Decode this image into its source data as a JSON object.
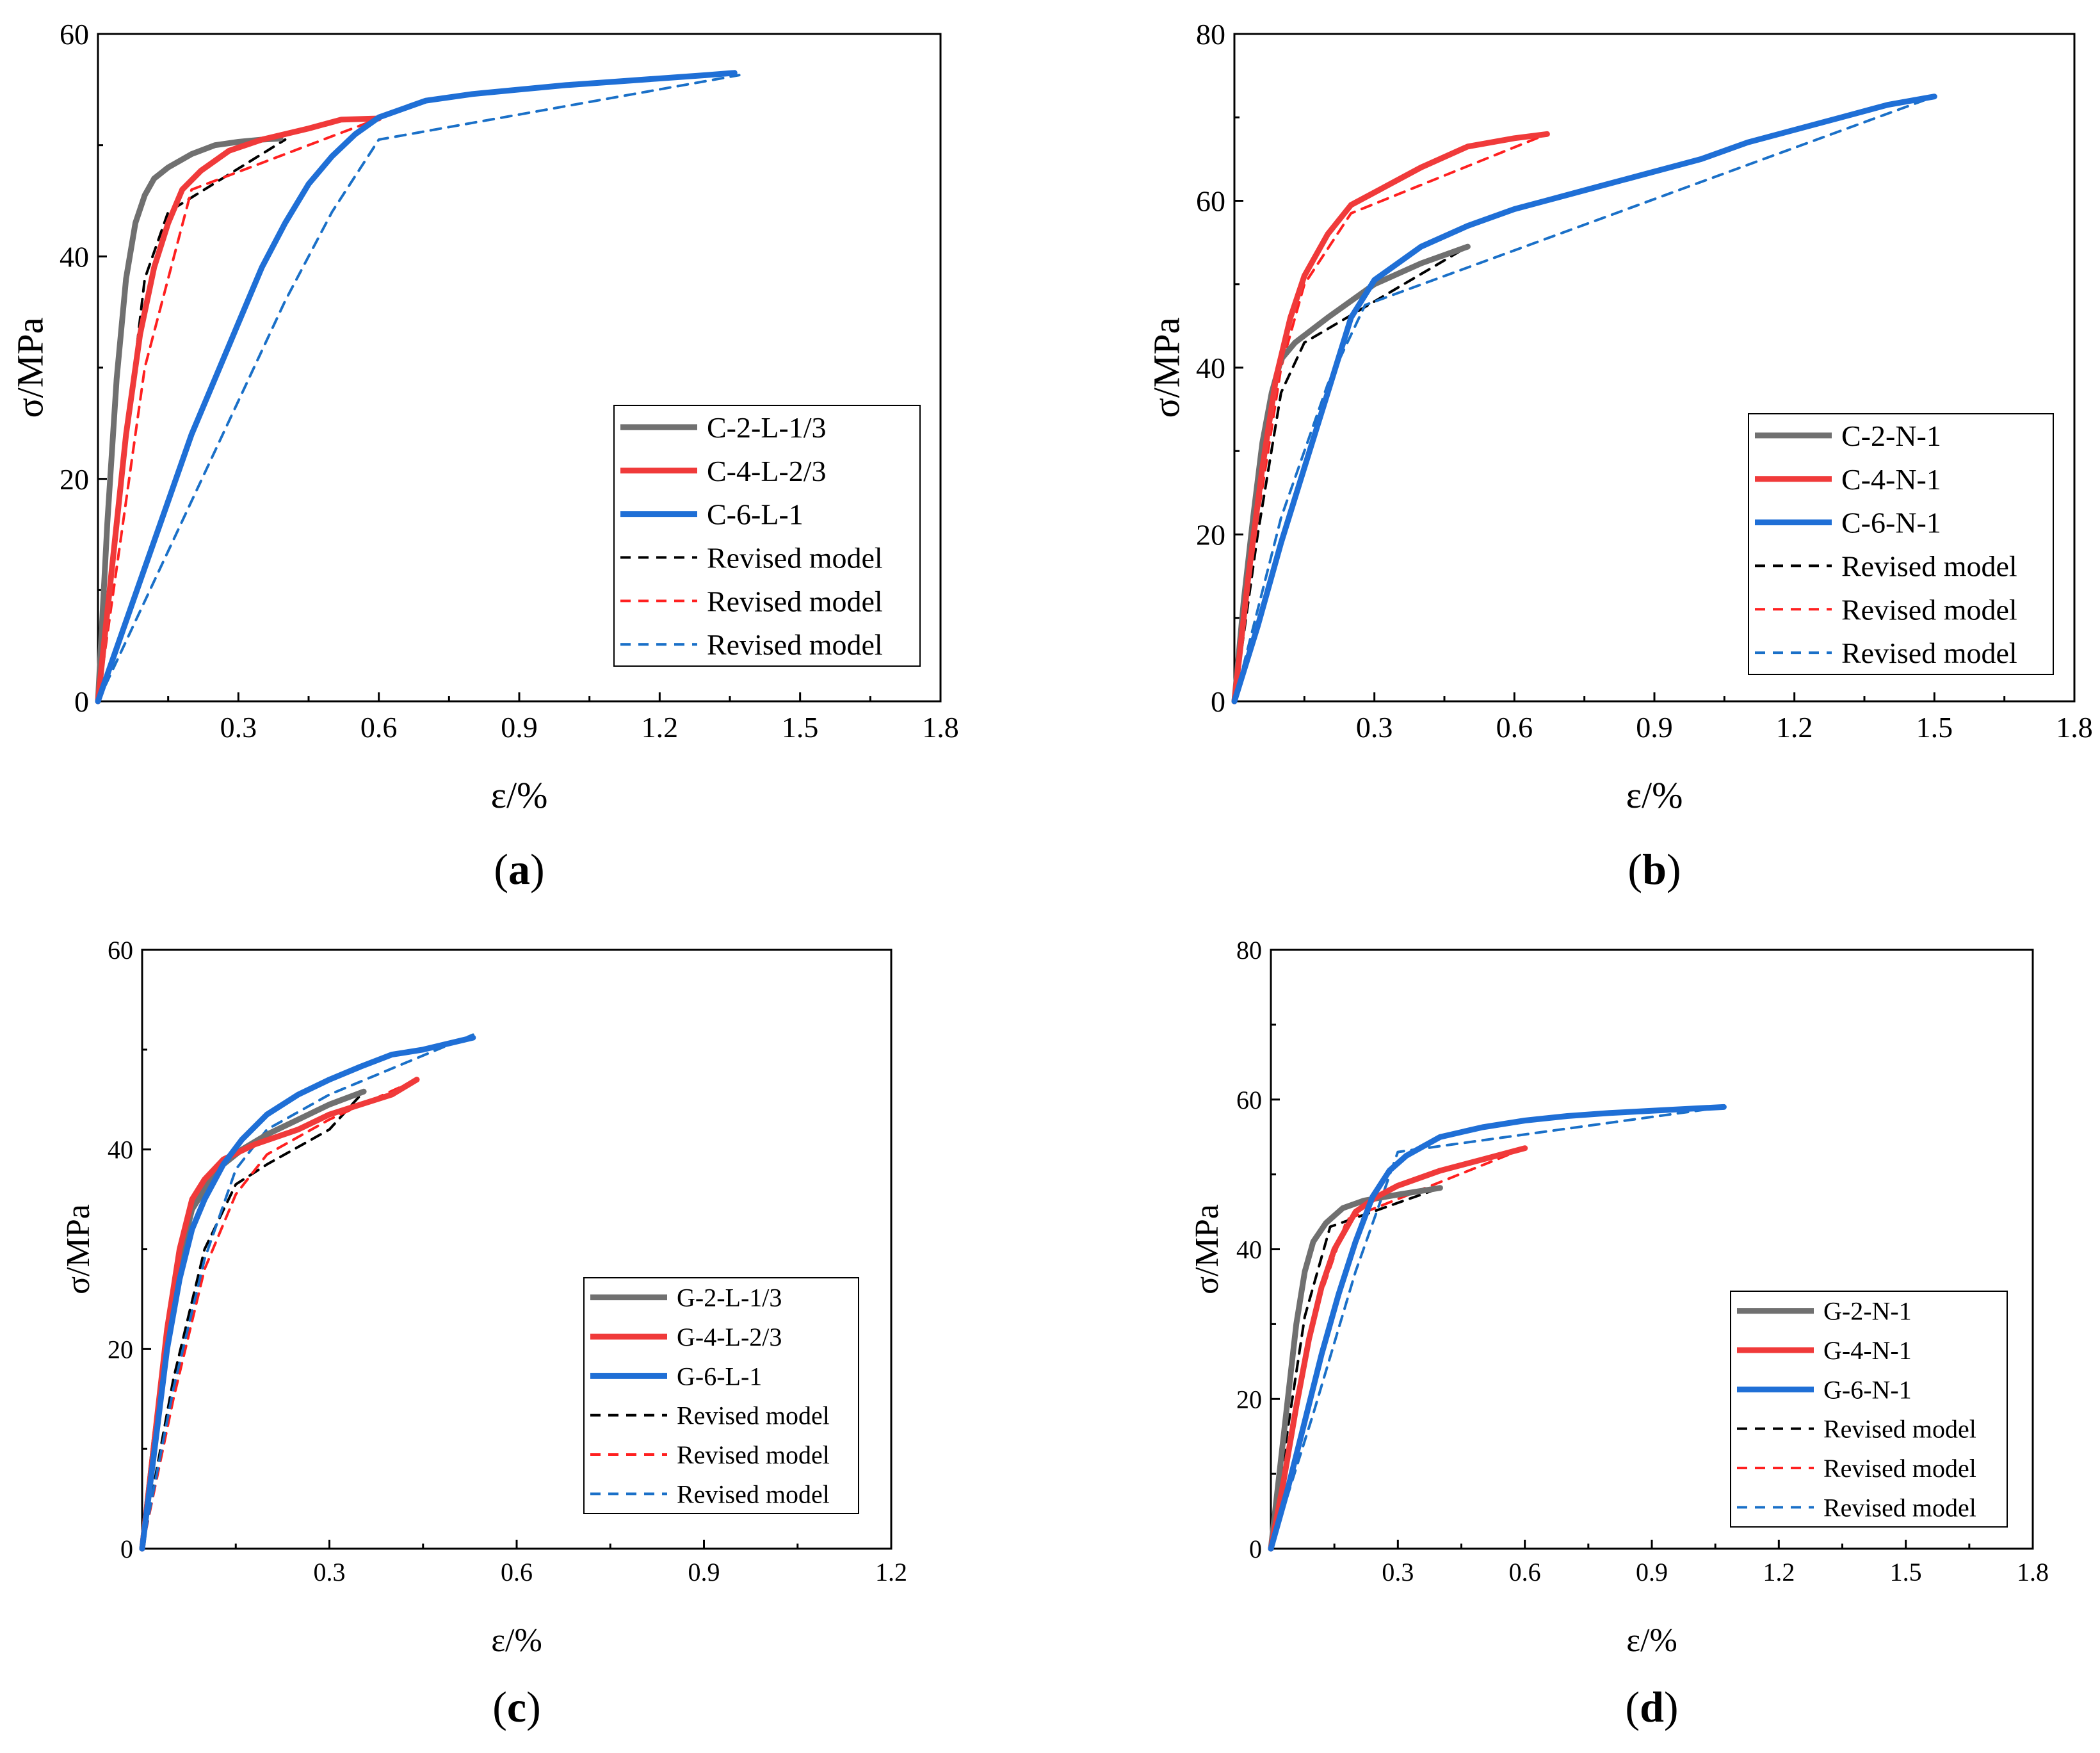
{
  "colors": {
    "gray": "#707070",
    "red": "#f03a3a",
    "blue": "#1f6fd6",
    "black": "#000000",
    "red_dash": "#ff2020",
    "blue_dash": "#1a70c8"
  },
  "chart_data": [
    {
      "panel_label": "a",
      "type": "line",
      "xlabel": "ε/%",
      "ylabel": "σ/MPa",
      "xlim": [
        0,
        1.8
      ],
      "ylim": [
        0,
        60
      ],
      "xticks": [
        "0.3",
        "0.6",
        "0.9",
        "1.2",
        "1.5",
        "1.8"
      ],
      "yticks": [
        "0",
        "20",
        "40",
        "60"
      ],
      "legend_position": "bottom-right",
      "series": [
        {
          "name": "C-2-L-1/3",
          "style": "solid",
          "color": "gray",
          "x": [
            0,
            0.02,
            0.04,
            0.06,
            0.08,
            0.1,
            0.12,
            0.15,
            0.2,
            0.25,
            0.3,
            0.35,
            0.39
          ],
          "y": [
            0,
            16,
            29,
            38,
            43,
            45.5,
            47,
            48,
            49.2,
            50,
            50.3,
            50.5,
            50.6
          ]
        },
        {
          "name": "C-4-L-2/3",
          "style": "solid",
          "color": "red",
          "x": [
            0,
            0.03,
            0.06,
            0.09,
            0.12,
            0.15,
            0.18,
            0.22,
            0.28,
            0.35,
            0.45,
            0.52,
            0.6
          ],
          "y": [
            0,
            12,
            24,
            33,
            39,
            43,
            46,
            47.7,
            49.5,
            50.5,
            51.5,
            52.3,
            52.4
          ]
        },
        {
          "name": "C-6-L-1",
          "style": "solid",
          "color": "blue",
          "x": [
            0,
            0.05,
            0.1,
            0.15,
            0.2,
            0.25,
            0.3,
            0.35,
            0.4,
            0.45,
            0.5,
            0.55,
            0.6,
            0.7,
            0.8,
            0.9,
            1.0,
            1.1,
            1.2,
            1.3,
            1.36
          ],
          "y": [
            0,
            6,
            12,
            18,
            24,
            29,
            34,
            39,
            43,
            46.5,
            49,
            51,
            52.5,
            54,
            54.6,
            55,
            55.4,
            55.7,
            56,
            56.3,
            56.5
          ]
        },
        {
          "name": "Revised model",
          "style": "dashed",
          "color": "black",
          "x": [
            0,
            0.05,
            0.1,
            0.15,
            0.4
          ],
          "y": [
            0,
            20,
            38,
            44,
            50.5
          ]
        },
        {
          "name": "Revised model",
          "style": "dashed",
          "color": "red_dash",
          "x": [
            0,
            0.05,
            0.1,
            0.2,
            0.6
          ],
          "y": [
            0,
            15,
            30,
            46,
            52.4
          ]
        },
        {
          "name": "Revised model",
          "style": "dashed",
          "color": "blue_dash",
          "x": [
            0,
            0.1,
            0.2,
            0.3,
            0.4,
            0.5,
            0.6,
            1.37
          ],
          "y": [
            0,
            9,
            18,
            27,
            36,
            44,
            50.5,
            56.3
          ]
        }
      ]
    },
    {
      "panel_label": "b",
      "type": "line",
      "xlabel": "ε/%",
      "ylabel": "σ/MPa",
      "xlim": [
        0,
        1.8
      ],
      "ylim": [
        0,
        80
      ],
      "xticks": [
        "0.3",
        "0.6",
        "0.9",
        "1.2",
        "1.5",
        "1.8"
      ],
      "yticks": [
        "0",
        "20",
        "40",
        "60",
        "80"
      ],
      "legend_position": "bottom-right",
      "series": [
        {
          "name": "C-2-N-1",
          "style": "solid",
          "color": "gray",
          "x": [
            0,
            0.02,
            0.04,
            0.06,
            0.08,
            0.1,
            0.13,
            0.2,
            0.3,
            0.4,
            0.5
          ],
          "y": [
            0,
            12,
            22,
            31,
            37,
            41,
            43,
            46,
            50,
            52.5,
            54.5
          ]
        },
        {
          "name": "C-4-N-1",
          "style": "solid",
          "color": "red",
          "x": [
            0,
            0.03,
            0.06,
            0.09,
            0.12,
            0.15,
            0.2,
            0.25,
            0.3,
            0.4,
            0.5,
            0.6,
            0.67
          ],
          "y": [
            0,
            15,
            28,
            39,
            46,
            51,
            56,
            59.5,
            61,
            64,
            66.5,
            67.5,
            68
          ]
        },
        {
          "name": "C-6-N-1",
          "style": "solid",
          "color": "blue",
          "x": [
            0,
            0.05,
            0.1,
            0.15,
            0.2,
            0.25,
            0.3,
            0.4,
            0.5,
            0.6,
            0.7,
            0.8,
            0.9,
            1.0,
            1.1,
            1.2,
            1.3,
            1.4,
            1.5
          ],
          "y": [
            0,
            9,
            19,
            28,
            37,
            46,
            50.5,
            54.5,
            57,
            59,
            60.5,
            62,
            63.5,
            65,
            67,
            68.5,
            70,
            71.5,
            72.5
          ]
        },
        {
          "name": "Revised model",
          "style": "dashed",
          "color": "black",
          "x": [
            0,
            0.05,
            0.1,
            0.15,
            0.5
          ],
          "y": [
            0,
            20,
            37,
            43,
            54.5
          ]
        },
        {
          "name": "Revised model",
          "style": "dashed",
          "color": "red_dash",
          "x": [
            0,
            0.05,
            0.1,
            0.15,
            0.25,
            0.67
          ],
          "y": [
            0,
            22,
            40,
            50,
            58.5,
            68
          ]
        },
        {
          "name": "Revised model",
          "style": "dashed",
          "color": "blue_dash",
          "x": [
            0,
            0.1,
            0.2,
            0.28,
            1.5
          ],
          "y": [
            0,
            22,
            38,
            47.5,
            72.5
          ]
        }
      ]
    },
    {
      "panel_label": "c",
      "type": "line",
      "xlabel": "ε/%",
      "ylabel": "σ/MPa",
      "xlim": [
        0,
        1.2
      ],
      "ylim": [
        0,
        60
      ],
      "xticks": [
        "0.3",
        "0.6",
        "0.9",
        "1.2"
      ],
      "yticks": [
        "0",
        "20",
        "40",
        "60"
      ],
      "legend_position": "bottom-right",
      "series": [
        {
          "name": "G-2-L-1/3",
          "style": "solid",
          "color": "gray",
          "x": [
            0,
            0.02,
            0.04,
            0.06,
            0.08,
            0.12,
            0.16,
            0.2,
            0.25,
            0.3,
            0.355
          ],
          "y": [
            0,
            11,
            21,
            29,
            34,
            38,
            40,
            41.5,
            43,
            44.5,
            45.8
          ]
        },
        {
          "name": "G-4-L-2/3",
          "style": "solid",
          "color": "red",
          "x": [
            0,
            0.02,
            0.04,
            0.06,
            0.08,
            0.1,
            0.13,
            0.18,
            0.25,
            0.3,
            0.35,
            0.4,
            0.44
          ],
          "y": [
            0,
            11,
            22,
            30,
            35,
            37,
            39,
            40.5,
            42,
            43.5,
            44.5,
            45.5,
            47
          ]
        },
        {
          "name": "G-6-L-1",
          "style": "solid",
          "color": "blue",
          "x": [
            0,
            0.02,
            0.04,
            0.06,
            0.08,
            0.1,
            0.13,
            0.16,
            0.2,
            0.25,
            0.3,
            0.35,
            0.4,
            0.45,
            0.53
          ],
          "y": [
            0,
            10,
            20,
            27,
            32,
            35,
            38.5,
            41,
            43.5,
            45.5,
            47,
            48.3,
            49.5,
            50,
            51.2
          ]
        },
        {
          "name": "Revised model",
          "style": "dashed",
          "color": "black",
          "x": [
            0,
            0.05,
            0.1,
            0.15,
            0.2,
            0.3,
            0.355
          ],
          "y": [
            0,
            17,
            30,
            36.5,
            38.5,
            42,
            45.8
          ]
        },
        {
          "name": "Revised model",
          "style": "dashed",
          "color": "red_dash",
          "x": [
            0,
            0.05,
            0.1,
            0.15,
            0.2,
            0.3,
            0.44
          ],
          "y": [
            0,
            15,
            28,
            35.5,
            39.5,
            43,
            47
          ]
        },
        {
          "name": "Revised model",
          "style": "dashed",
          "color": "blue_dash",
          "x": [
            0,
            0.05,
            0.1,
            0.15,
            0.2,
            0.3,
            0.53
          ],
          "y": [
            0,
            16,
            29,
            38,
            42,
            45.5,
            51.5
          ]
        }
      ]
    },
    {
      "panel_label": "d",
      "type": "line",
      "xlabel": "ε/%",
      "ylabel": "σ/MPa",
      "xlim": [
        0,
        1.8
      ],
      "ylim": [
        0,
        80
      ],
      "xticks": [
        "0.3",
        "0.6",
        "0.9",
        "1.2",
        "1.5",
        "1.8"
      ],
      "yticks": [
        "0",
        "20",
        "40",
        "60",
        "80"
      ],
      "legend_position": "bottom-right",
      "series": [
        {
          "name": "G-2-N-1",
          "style": "solid",
          "color": "gray",
          "x": [
            0,
            0.02,
            0.04,
            0.06,
            0.08,
            0.1,
            0.13,
            0.17,
            0.22,
            0.3,
            0.4
          ],
          "y": [
            0,
            10,
            20,
            30,
            37,
            41,
            43.5,
            45.5,
            46.5,
            47.3,
            48.2
          ]
        },
        {
          "name": "G-4-N-1",
          "style": "solid",
          "color": "red",
          "x": [
            0,
            0.03,
            0.06,
            0.09,
            0.12,
            0.15,
            0.2,
            0.25,
            0.3,
            0.4,
            0.5,
            0.6
          ],
          "y": [
            0,
            9,
            19,
            28,
            35,
            40,
            45,
            47,
            48.5,
            50.5,
            52,
            53.5
          ]
        },
        {
          "name": "G-6-N-1",
          "style": "solid",
          "color": "blue",
          "x": [
            0,
            0.04,
            0.08,
            0.12,
            0.16,
            0.2,
            0.24,
            0.28,
            0.32,
            0.4,
            0.5,
            0.6,
            0.7,
            0.8,
            0.9,
            1.0,
            1.07
          ],
          "y": [
            0,
            8,
            17,
            26,
            34,
            41,
            47,
            50.5,
            52.5,
            55,
            56.3,
            57.2,
            57.8,
            58.2,
            58.5,
            58.8,
            59
          ]
        },
        {
          "name": "Revised model",
          "style": "dashed",
          "color": "black",
          "x": [
            0,
            0.04,
            0.08,
            0.14,
            0.4
          ],
          "y": [
            0,
            16,
            31,
            43,
            48.2
          ]
        },
        {
          "name": "Revised model",
          "style": "dashed",
          "color": "red_dash",
          "x": [
            0,
            0.05,
            0.1,
            0.18,
            0.6
          ],
          "y": [
            0,
            17,
            31,
            44,
            53.5
          ]
        },
        {
          "name": "Revised model",
          "style": "dashed",
          "color": "blue_dash",
          "x": [
            0,
            0.1,
            0.2,
            0.3,
            1.07
          ],
          "y": [
            0,
            18,
            37,
            53,
            59
          ]
        }
      ]
    }
  ]
}
